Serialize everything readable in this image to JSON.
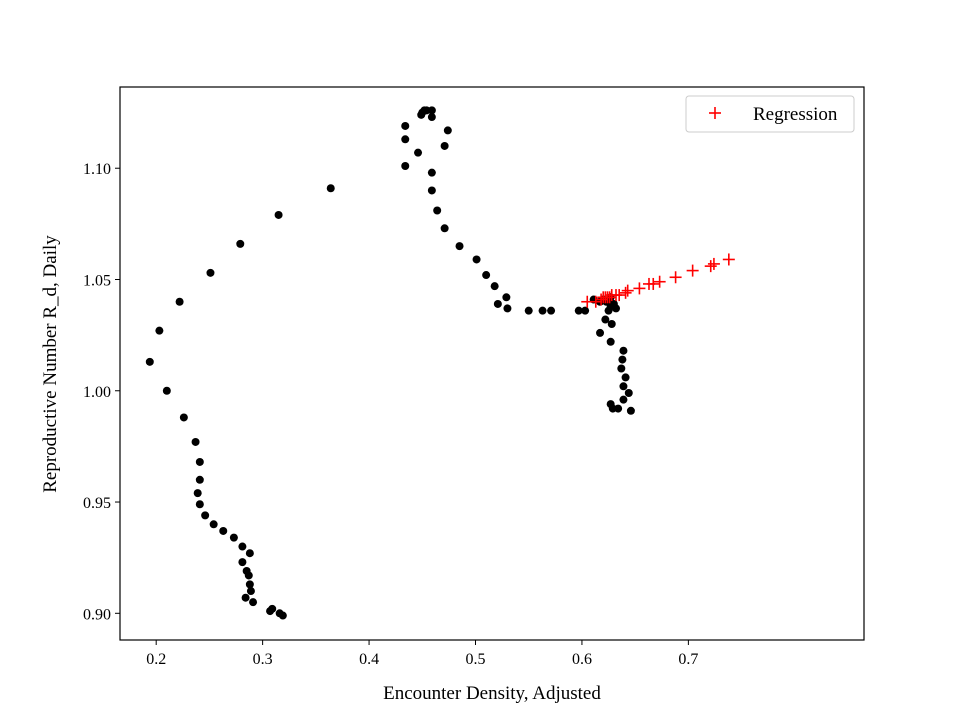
{
  "chart_data": {
    "type": "scatter",
    "title": "",
    "xlabel": "Encounter Density, Adjusted",
    "ylabel": "Reproductive Number R_d, Daily",
    "xlim": [
      0.166,
      0.865
    ],
    "ylim": [
      0.888,
      1.1365
    ],
    "x_ticks": [
      0.2,
      0.3,
      0.4,
      0.5,
      0.6,
      0.7
    ],
    "x_tick_labels": [
      "0.2",
      "0.3",
      "0.4",
      "0.5",
      "0.6",
      "0.7"
    ],
    "y_ticks": [
      0.9,
      0.95,
      1.0,
      1.05,
      1.1
    ],
    "y_tick_labels": [
      "0.90",
      "0.95",
      "1.00",
      "1.05",
      "1.10"
    ],
    "grid": false,
    "legend": {
      "position": "top-right",
      "entries": [
        "Regression"
      ]
    },
    "colors": {
      "observed": "#000000",
      "regression": "#ff0000"
    },
    "series": [
      {
        "marker": "dot",
        "color": "#000000",
        "points": [
          [
            0.319,
            0.899
          ],
          [
            0.316,
            0.9
          ],
          [
            0.309,
            0.902
          ],
          [
            0.307,
            0.901
          ],
          [
            0.291,
            0.905
          ],
          [
            0.284,
            0.907
          ],
          [
            0.289,
            0.91
          ],
          [
            0.288,
            0.913
          ],
          [
            0.287,
            0.917
          ],
          [
            0.285,
            0.919
          ],
          [
            0.281,
            0.923
          ],
          [
            0.288,
            0.927
          ],
          [
            0.281,
            0.93
          ],
          [
            0.273,
            0.934
          ],
          [
            0.263,
            0.937
          ],
          [
            0.254,
            0.94
          ],
          [
            0.246,
            0.944
          ],
          [
            0.241,
            0.949
          ],
          [
            0.239,
            0.954
          ],
          [
            0.241,
            0.96
          ],
          [
            0.241,
            0.968
          ],
          [
            0.237,
            0.977
          ],
          [
            0.226,
            0.988
          ],
          [
            0.21,
            1.0
          ],
          [
            0.194,
            1.013
          ],
          [
            0.203,
            1.027
          ],
          [
            0.222,
            1.04
          ],
          [
            0.251,
            1.053
          ],
          [
            0.279,
            1.066
          ],
          [
            0.315,
            1.079
          ],
          [
            0.364,
            1.091
          ],
          [
            0.434,
            1.101
          ],
          [
            0.446,
            1.107
          ],
          [
            0.434,
            1.113
          ],
          [
            0.434,
            1.119
          ],
          [
            0.449,
            1.124
          ],
          [
            0.45,
            1.125
          ],
          [
            0.452,
            1.126
          ],
          [
            0.454,
            1.126
          ],
          [
            0.459,
            1.126
          ],
          [
            0.459,
            1.123
          ],
          [
            0.474,
            1.117
          ],
          [
            0.471,
            1.11
          ],
          [
            0.459,
            1.098
          ],
          [
            0.459,
            1.09
          ],
          [
            0.464,
            1.081
          ],
          [
            0.471,
            1.073
          ],
          [
            0.485,
            1.065
          ],
          [
            0.501,
            1.059
          ],
          [
            0.51,
            1.052
          ],
          [
            0.518,
            1.047
          ],
          [
            0.529,
            1.042
          ],
          [
            0.521,
            1.039
          ],
          [
            0.53,
            1.037
          ],
          [
            0.55,
            1.036
          ],
          [
            0.563,
            1.036
          ],
          [
            0.571,
            1.036
          ],
          [
            0.597,
            1.036
          ],
          [
            0.603,
            1.036
          ],
          [
            0.611,
            1.041
          ],
          [
            0.617,
            1.04
          ],
          [
            0.62,
            1.041
          ],
          [
            0.623,
            1.04
          ],
          [
            0.625,
            1.041
          ],
          [
            0.627,
            1.042
          ],
          [
            0.628,
            1.039
          ],
          [
            0.63,
            1.039
          ],
          [
            0.632,
            1.037
          ],
          [
            0.627,
            1.038
          ],
          [
            0.625,
            1.036
          ],
          [
            0.622,
            1.032
          ],
          [
            0.628,
            1.03
          ],
          [
            0.617,
            1.026
          ],
          [
            0.627,
            1.022
          ],
          [
            0.639,
            1.018
          ],
          [
            0.638,
            1.014
          ],
          [
            0.637,
            1.01
          ],
          [
            0.641,
            1.006
          ],
          [
            0.639,
            1.002
          ],
          [
            0.644,
            0.999
          ],
          [
            0.639,
            0.996
          ],
          [
            0.627,
            0.994
          ],
          [
            0.629,
            0.992
          ],
          [
            0.634,
            0.992
          ],
          [
            0.646,
            0.991
          ]
        ]
      },
      {
        "name": "Regression",
        "marker": "plus",
        "color": "#ff0000",
        "points": [
          [
            0.605,
            1.04
          ],
          [
            0.613,
            1.04
          ],
          [
            0.618,
            1.041
          ],
          [
            0.62,
            1.042
          ],
          [
            0.622,
            1.042
          ],
          [
            0.624,
            1.042
          ],
          [
            0.626,
            1.042
          ],
          [
            0.628,
            1.043
          ],
          [
            0.632,
            1.043
          ],
          [
            0.635,
            1.043
          ],
          [
            0.641,
            1.044
          ],
          [
            0.643,
            1.045
          ],
          [
            0.654,
            1.046
          ],
          [
            0.663,
            1.048
          ],
          [
            0.667,
            1.048
          ],
          [
            0.673,
            1.049
          ],
          [
            0.688,
            1.051
          ],
          [
            0.704,
            1.054
          ],
          [
            0.721,
            1.056
          ],
          [
            0.724,
            1.057
          ],
          [
            0.738,
            1.059
          ]
        ]
      }
    ]
  }
}
